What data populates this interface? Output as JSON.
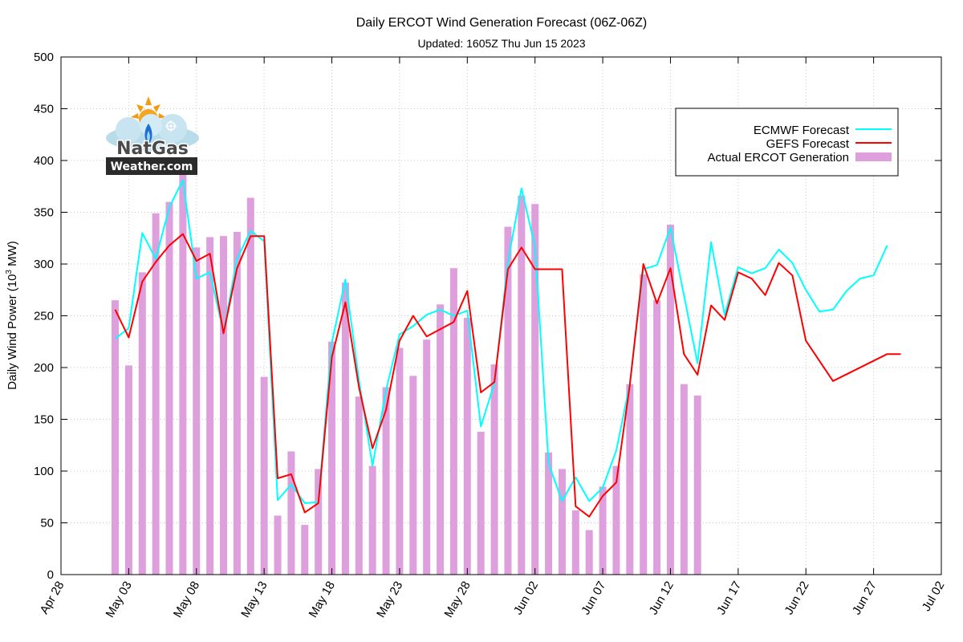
{
  "chart_data": {
    "type": "bar+line",
    "title": "Daily ERCOT Wind Generation Forecast (06Z-06Z)",
    "subtitle": "Updated: 1605Z Thu Jun 15 2023",
    "ylabel": "Daily Wind Power (10",
    "ylabel_sup": "3",
    "ylabel_suffix": " MW)",
    "ylim": [
      0,
      500
    ],
    "yticks": [
      0,
      50,
      100,
      150,
      200,
      250,
      300,
      350,
      400,
      450,
      500
    ],
    "xlim": [
      "2023-04-28",
      "2023-07-02"
    ],
    "xtick_dates": [
      "2023-04-28",
      "2023-05-03",
      "2023-05-08",
      "2023-05-13",
      "2023-05-18",
      "2023-05-23",
      "2023-05-28",
      "2023-06-02",
      "2023-06-07",
      "2023-06-12",
      "2023-06-17",
      "2023-06-22",
      "2023-06-27",
      "2023-07-02"
    ],
    "xtick_labels": [
      "Apr 28",
      "May 03",
      "May 08",
      "May 13",
      "May 18",
      "May 23",
      "May 28",
      "Jun 02",
      "Jun 07",
      "Jun 12",
      "Jun 17",
      "Jun 22",
      "Jun 27",
      "Jul 02"
    ],
    "grid": true,
    "legend_position": "top-right",
    "series": [
      {
        "name": "ECMWF Forecast",
        "kind": "line",
        "color": "#00ffff",
        "points": [
          [
            "2023-05-02",
            228
          ],
          [
            "2023-05-03",
            238
          ],
          [
            "2023-05-04",
            330
          ],
          [
            "2023-05-05",
            305
          ],
          [
            "2023-05-06",
            355
          ],
          [
            "2023-05-07",
            381
          ],
          [
            "2023-05-08",
            286
          ],
          [
            "2023-05-09",
            292
          ],
          [
            "2023-05-10",
            234
          ],
          [
            "2023-05-11",
            305
          ],
          [
            "2023-05-12",
            332
          ],
          [
            "2023-05-13",
            322
          ],
          [
            "2023-05-14",
            72
          ],
          [
            "2023-05-15",
            87
          ],
          [
            "2023-05-16",
            69
          ],
          [
            "2023-05-17",
            70
          ],
          [
            "2023-05-18",
            224
          ],
          [
            "2023-05-19",
            285
          ],
          [
            "2023-05-20",
            188
          ],
          [
            "2023-05-21",
            105
          ],
          [
            "2023-05-22",
            178
          ],
          [
            "2023-05-23",
            232
          ],
          [
            "2023-05-24",
            240
          ],
          [
            "2023-05-25",
            251
          ],
          [
            "2023-05-26",
            256
          ],
          [
            "2023-05-27",
            250
          ],
          [
            "2023-05-28",
            255
          ],
          [
            "2023-05-29",
            143
          ],
          [
            "2023-05-30",
            185
          ],
          [
            "2023-05-31",
            302
          ],
          [
            "2023-06-01",
            373
          ],
          [
            "2023-06-02",
            317
          ],
          [
            "2023-06-03",
            107
          ],
          [
            "2023-06-04",
            71
          ],
          [
            "2023-06-05",
            94
          ],
          [
            "2023-06-06",
            71
          ],
          [
            "2023-06-07",
            84
          ],
          [
            "2023-06-08",
            120
          ],
          [
            "2023-06-09",
            184
          ],
          [
            "2023-06-10",
            295
          ],
          [
            "2023-06-11",
            299
          ],
          [
            "2023-06-12",
            335
          ],
          [
            "2023-06-14",
            204
          ],
          [
            "2023-06-15",
            321
          ],
          [
            "2023-06-16",
            251
          ],
          [
            "2023-06-17",
            297
          ],
          [
            "2023-06-18",
            291
          ],
          [
            "2023-06-19",
            296
          ],
          [
            "2023-06-20",
            314
          ],
          [
            "2023-06-21",
            301
          ],
          [
            "2023-06-22",
            275
          ],
          [
            "2023-06-23",
            254
          ],
          [
            "2023-06-24",
            256
          ],
          [
            "2023-06-25",
            274
          ],
          [
            "2023-06-26",
            286
          ],
          [
            "2023-06-27",
            289
          ],
          [
            "2023-06-28",
            318
          ]
        ]
      },
      {
        "name": "GEFS Forecast",
        "kind": "line",
        "color": "#ff0000",
        "points": [
          [
            "2023-05-02",
            256
          ],
          [
            "2023-05-03",
            229
          ],
          [
            "2023-05-04",
            283
          ],
          [
            "2023-05-05",
            302
          ],
          [
            "2023-05-06",
            318
          ],
          [
            "2023-05-07",
            329
          ],
          [
            "2023-05-08",
            303
          ],
          [
            "2023-05-09",
            310
          ],
          [
            "2023-05-10",
            233
          ],
          [
            "2023-05-11",
            296
          ],
          [
            "2023-05-12",
            327
          ],
          [
            "2023-05-13",
            327
          ],
          [
            "2023-05-14",
            93
          ],
          [
            "2023-05-15",
            97
          ],
          [
            "2023-05-16",
            60
          ],
          [
            "2023-05-17",
            69
          ],
          [
            "2023-05-18",
            210
          ],
          [
            "2023-05-19",
            263
          ],
          [
            "2023-05-20",
            181
          ],
          [
            "2023-05-21",
            122
          ],
          [
            "2023-05-22",
            159
          ],
          [
            "2023-05-23",
            226
          ],
          [
            "2023-05-24",
            250
          ],
          [
            "2023-05-25",
            230
          ],
          [
            "2023-05-26",
            237
          ],
          [
            "2023-05-27",
            244
          ],
          [
            "2023-05-28",
            274
          ],
          [
            "2023-05-29",
            176
          ],
          [
            "2023-05-30",
            186
          ],
          [
            "2023-05-31",
            295
          ],
          [
            "2023-06-01",
            316
          ],
          [
            "2023-06-02",
            295
          ],
          [
            "2023-06-04",
            295
          ],
          [
            "2023-06-05",
            66
          ],
          [
            "2023-06-06",
            56
          ],
          [
            "2023-06-07",
            76
          ],
          [
            "2023-06-08",
            89
          ],
          [
            "2023-06-09",
            183
          ],
          [
            "2023-06-10",
            300
          ],
          [
            "2023-06-11",
            262
          ],
          [
            "2023-06-12",
            296
          ],
          [
            "2023-06-13",
            213
          ],
          [
            "2023-06-14",
            193
          ],
          [
            "2023-06-15",
            260
          ],
          [
            "2023-06-16",
            246
          ],
          [
            "2023-06-17",
            292
          ],
          [
            "2023-06-18",
            286
          ],
          [
            "2023-06-19",
            270
          ],
          [
            "2023-06-20",
            301
          ],
          [
            "2023-06-21",
            289
          ],
          [
            "2023-06-22",
            226
          ],
          [
            "2023-06-24",
            187
          ],
          [
            "2023-06-28",
            213
          ],
          [
            "2023-06-29",
            213
          ]
        ]
      },
      {
        "name": "Actual ERCOT Generation",
        "kind": "bar",
        "color": "#dda0dd",
        "points": [
          [
            "2023-05-02",
            265
          ],
          [
            "2023-05-03",
            202
          ],
          [
            "2023-05-04",
            292
          ],
          [
            "2023-05-05",
            349
          ],
          [
            "2023-05-06",
            360
          ],
          [
            "2023-05-07",
            390
          ],
          [
            "2023-05-08",
            316
          ],
          [
            "2023-05-09",
            326
          ],
          [
            "2023-05-10",
            327
          ],
          [
            "2023-05-11",
            331
          ],
          [
            "2023-05-12",
            364
          ],
          [
            "2023-05-13",
            191
          ],
          [
            "2023-05-14",
            57
          ],
          [
            "2023-05-15",
            119
          ],
          [
            "2023-05-16",
            48
          ],
          [
            "2023-05-17",
            102
          ],
          [
            "2023-05-18",
            225
          ],
          [
            "2023-05-19",
            282
          ],
          [
            "2023-05-20",
            172
          ],
          [
            "2023-05-21",
            105
          ],
          [
            "2023-05-22",
            181
          ],
          [
            "2023-05-23",
            219
          ],
          [
            "2023-05-24",
            192
          ],
          [
            "2023-05-25",
            227
          ],
          [
            "2023-05-26",
            261
          ],
          [
            "2023-05-27",
            296
          ],
          [
            "2023-05-28",
            248
          ],
          [
            "2023-05-29",
            138
          ],
          [
            "2023-05-30",
            203
          ],
          [
            "2023-05-31",
            336
          ],
          [
            "2023-06-01",
            366
          ],
          [
            "2023-06-02",
            358
          ],
          [
            "2023-06-03",
            118
          ],
          [
            "2023-06-04",
            102
          ],
          [
            "2023-06-05",
            62
          ],
          [
            "2023-06-06",
            43
          ],
          [
            "2023-06-07",
            85
          ],
          [
            "2023-06-08",
            105
          ],
          [
            "2023-06-09",
            184
          ],
          [
            "2023-06-10",
            290
          ],
          [
            "2023-06-11",
            265
          ],
          [
            "2023-06-12",
            338
          ],
          [
            "2023-06-13",
            184
          ],
          [
            "2023-06-14",
            173
          ]
        ]
      }
    ]
  },
  "logo": {
    "line1": "NatGas",
    "line2": "Weather.com"
  }
}
